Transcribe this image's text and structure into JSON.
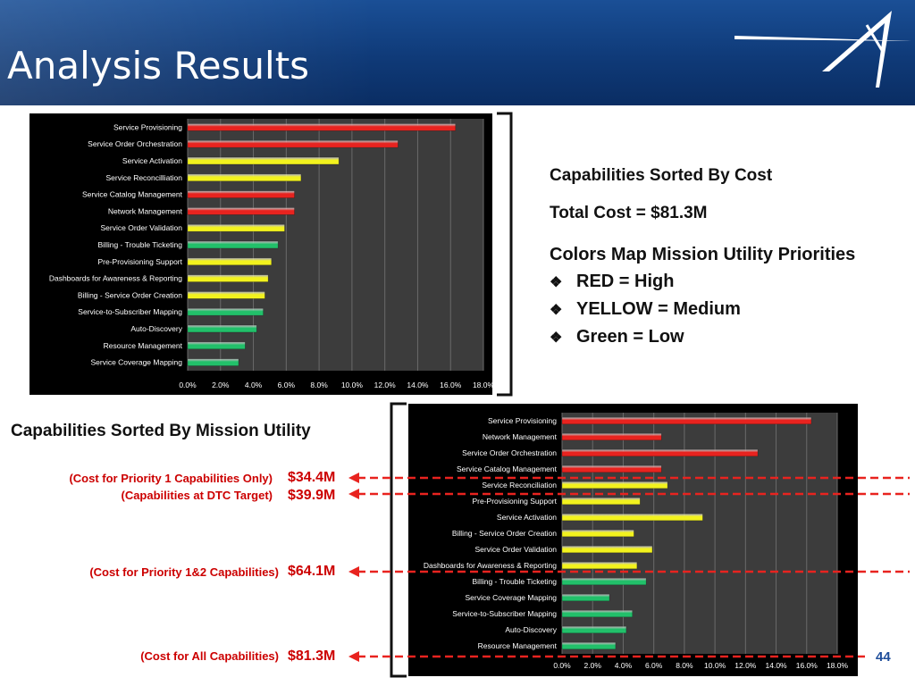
{
  "title": "Analysis Results",
  "logo_icon": "star-streak-logo",
  "page_number": "44",
  "colors": {
    "red": "#e8231f",
    "yellow": "#f2f21e",
    "green": "#22c06a",
    "annotation": "#cc0000",
    "header": "#12427f"
  },
  "legend": {
    "heading1": "Capabilities Sorted By Cost",
    "total": "Total Cost = $81.3M",
    "heading2": "Colors Map Mission Utility Priorities",
    "items": [
      "RED = High",
      "YELLOW = Medium",
      "Green = Low"
    ]
  },
  "utility_heading": "Capabilities Sorted By Mission Utility",
  "annotations": [
    {
      "note": "(Cost for Priority 1 Capabilities Only)",
      "amount": "$34.4M"
    },
    {
      "note": "(Capabilities at DTC Target)",
      "amount": "$39.9M"
    },
    {
      "note": "(Cost for Priority 1&2 Capabilities)",
      "amount": "$64.1M"
    },
    {
      "note": "(Cost for All Capabilities)",
      "amount": "$81.3M"
    }
  ],
  "chart_data": [
    {
      "type": "bar",
      "orientation": "horizontal",
      "xlim": [
        0,
        18
      ],
      "x_ticks": [
        "0.0%",
        "2.0%",
        "4.0%",
        "6.0%",
        "8.0%",
        "10.0%",
        "12.0%",
        "14.0%",
        "16.0%",
        "18.0%"
      ],
      "categories": [
        "Service Provisioning",
        "Service Order Orchestration",
        "Service Activation",
        "Service Reconcilliation",
        "Service Catalog Management",
        "Network Management",
        "Service Order Validation",
        "Billing - Trouble Ticketing",
        "Pre-Provisioning Support",
        "Dashboards for Awareness & Reporting",
        "Billing - Service Order Creation",
        "Service-to-Subscriber Mapping",
        "Auto-Discovery",
        "Resource Management",
        "Service Coverage Mapping"
      ],
      "values": [
        16.3,
        12.8,
        9.2,
        6.9,
        6.5,
        6.5,
        5.9,
        5.5,
        5.1,
        4.9,
        4.7,
        4.6,
        4.2,
        3.5,
        3.1
      ],
      "priority": [
        "red",
        "red",
        "yellow",
        "yellow",
        "red",
        "red",
        "yellow",
        "green",
        "yellow",
        "yellow",
        "yellow",
        "green",
        "green",
        "green",
        "green"
      ]
    },
    {
      "type": "bar",
      "orientation": "horizontal",
      "xlim": [
        0,
        18
      ],
      "x_ticks": [
        "0.0%",
        "2.0%",
        "4.0%",
        "6.0%",
        "8.0%",
        "10.0%",
        "12.0%",
        "14.0%",
        "16.0%",
        "18.0%"
      ],
      "categories": [
        "Service Provisioning",
        "Network Management",
        "Service Order Orchestration",
        "Service Catalog Management",
        "Service Reconciliation",
        "Pre-Provisioning Support",
        "Service Activation",
        "Billing - Service Order Creation",
        "Service Order Validation",
        "Dashboards for Awareness & Reporting",
        "Billing - Trouble Ticketing",
        "Service Coverage Mapping",
        "Service-to-Subscriber Mapping",
        "Auto-Discovery",
        "Resource Management"
      ],
      "values": [
        16.3,
        6.5,
        12.8,
        6.5,
        6.9,
        5.1,
        9.2,
        4.7,
        5.9,
        4.9,
        5.5,
        3.1,
        4.6,
        4.2,
        3.5
      ],
      "priority": [
        "red",
        "red",
        "red",
        "red",
        "yellow",
        "yellow",
        "yellow",
        "yellow",
        "yellow",
        "yellow",
        "green",
        "green",
        "green",
        "green",
        "green"
      ]
    }
  ]
}
